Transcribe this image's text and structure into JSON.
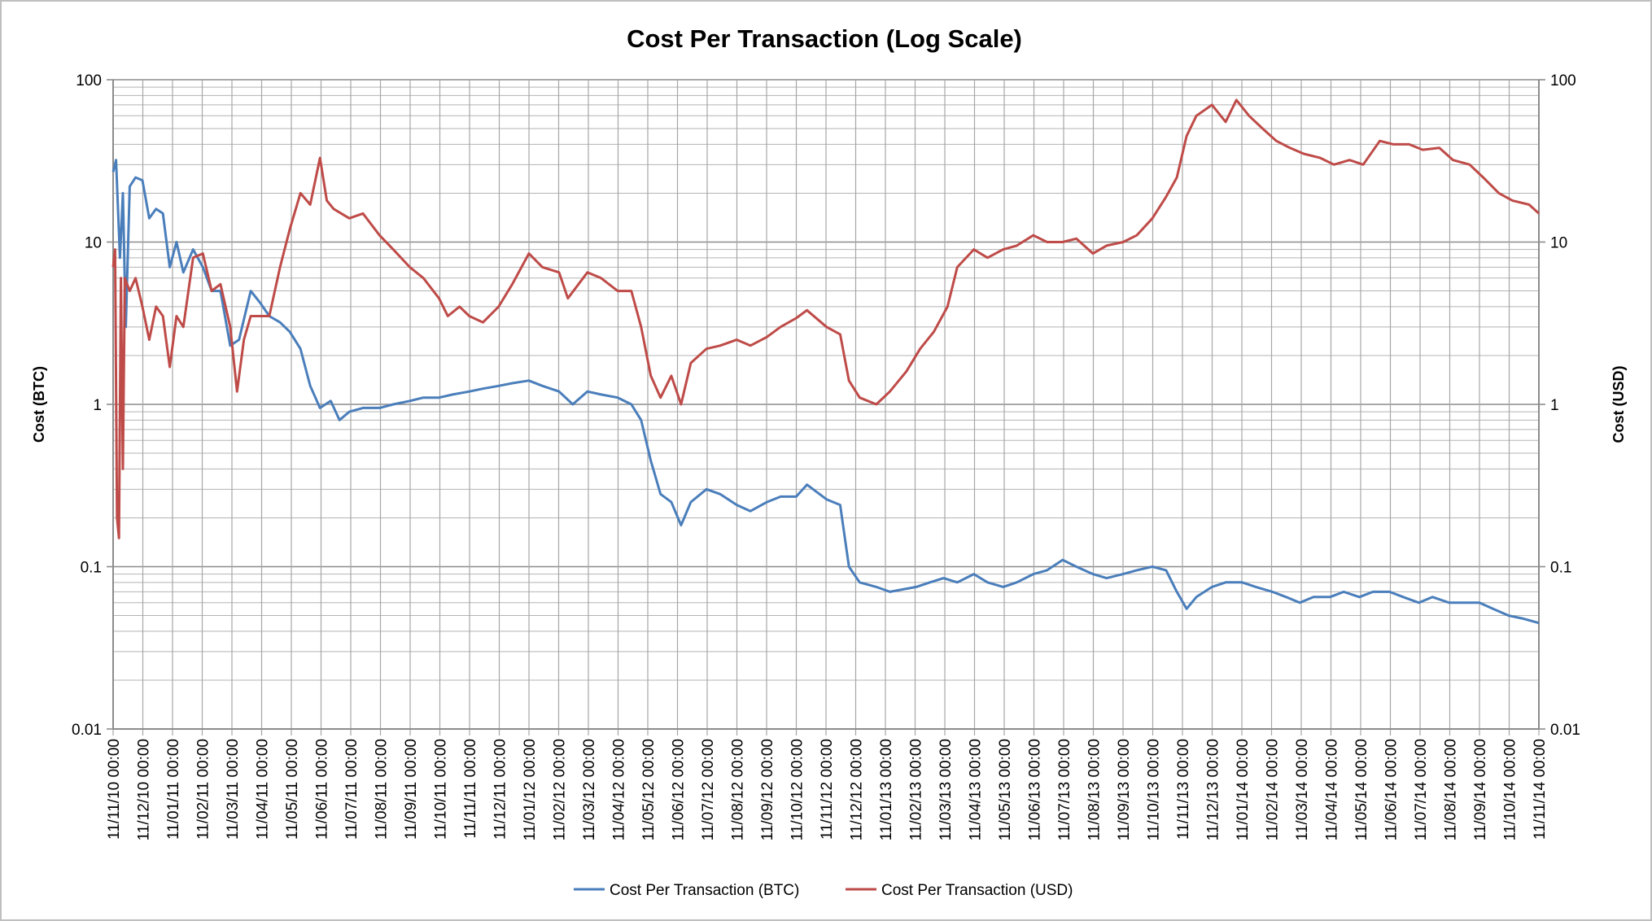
{
  "chart_data": {
    "type": "line",
    "title": "Cost Per Transaction (Log Scale)",
    "ylabel": "Cost (BTC)",
    "y2label": "Cost (USD)",
    "yscale": "log",
    "ylim": [
      0.01,
      100
    ],
    "y2lim": [
      0.01,
      100
    ],
    "ytick_labels": [
      "0.01",
      "0.1",
      "1",
      "10",
      "100"
    ],
    "grid": true,
    "legend": "bottom",
    "xlim": [
      "2010-11-11",
      "2014-11-11"
    ],
    "xtick_labels": [
      "11/11/10 00:00",
      "11/12/10 00:00",
      "11/01/11 00:00",
      "11/02/11 00:00",
      "11/03/11 00:00",
      "11/04/11 00:00",
      "11/05/11 00:00",
      "11/06/11 00:00",
      "11/07/11 00:00",
      "11/08/11 00:00",
      "11/09/11 00:00",
      "11/10/11 00:00",
      "11/11/11 00:00",
      "11/12/11 00:00",
      "11/01/12 00:00",
      "11/02/12 00:00",
      "11/03/12 00:00",
      "11/04/12 00:00",
      "11/05/12 00:00",
      "11/06/12 00:00",
      "11/07/12 00:00",
      "11/08/12 00:00",
      "11/09/12 00:00",
      "11/10/12 00:00",
      "11/11/12 00:00",
      "11/12/12 00:00",
      "11/01/13 00:00",
      "11/02/13 00:00",
      "11/03/13 00:00",
      "11/04/13 00:00",
      "11/05/13 00:00",
      "11/06/13 00:00",
      "11/07/13 00:00",
      "11/08/13 00:00",
      "11/09/13 00:00",
      "11/10/13 00:00",
      "11/11/13 00:00",
      "11/12/13 00:00",
      "11/01/14 00:00",
      "11/02/14 00:00",
      "11/03/14 00:00",
      "11/04/14 00:00",
      "11/05/14 00:00",
      "11/06/14 00:00",
      "11/07/14 00:00",
      "11/08/14 00:00",
      "11/09/14 00:00",
      "11/10/14 00:00",
      "11/11/14 00:00"
    ],
    "series": [
      {
        "name": "Cost Per Transaction (BTC)",
        "axis": "left",
        "color": "#4a7ebb",
        "points": [
          [
            "2010-11-11",
            27
          ],
          [
            "2010-11-14",
            32
          ],
          [
            "2010-11-18",
            8
          ],
          [
            "2010-11-21",
            20
          ],
          [
            "2010-11-24",
            3
          ],
          [
            "2010-11-28",
            22
          ],
          [
            "2010-12-04",
            25
          ],
          [
            "2010-12-11",
            24
          ],
          [
            "2010-12-18",
            14
          ],
          [
            "2010-12-25",
            16
          ],
          [
            "2011-01-01",
            15
          ],
          [
            "2011-01-08",
            7
          ],
          [
            "2011-01-15",
            10
          ],
          [
            "2011-01-22",
            6.5
          ],
          [
            "2011-02-01",
            9
          ],
          [
            "2011-02-11",
            7
          ],
          [
            "2011-02-20",
            5
          ],
          [
            "2011-03-01",
            5
          ],
          [
            "2011-03-11",
            2.3
          ],
          [
            "2011-03-20",
            2.5
          ],
          [
            "2011-04-01",
            5
          ],
          [
            "2011-04-11",
            4.2
          ],
          [
            "2011-04-20",
            3.5
          ],
          [
            "2011-05-01",
            3.2
          ],
          [
            "2011-05-11",
            2.8
          ],
          [
            "2011-05-22",
            2.2
          ],
          [
            "2011-06-01",
            1.3
          ],
          [
            "2011-06-11",
            0.95
          ],
          [
            "2011-06-22",
            1.05
          ],
          [
            "2011-07-01",
            0.8
          ],
          [
            "2011-07-11",
            0.9
          ],
          [
            "2011-07-25",
            0.95
          ],
          [
            "2011-08-11",
            0.95
          ],
          [
            "2011-08-25",
            1.0
          ],
          [
            "2011-09-11",
            1.05
          ],
          [
            "2011-09-25",
            1.1
          ],
          [
            "2011-10-11",
            1.1
          ],
          [
            "2011-10-25",
            1.15
          ],
          [
            "2011-11-11",
            1.2
          ],
          [
            "2011-11-25",
            1.25
          ],
          [
            "2011-12-11",
            1.3
          ],
          [
            "2011-12-25",
            1.35
          ],
          [
            "2012-01-11",
            1.4
          ],
          [
            "2012-01-25",
            1.3
          ],
          [
            "2012-02-11",
            1.2
          ],
          [
            "2012-02-25",
            1.0
          ],
          [
            "2012-03-11",
            1.2
          ],
          [
            "2012-03-25",
            1.15
          ],
          [
            "2012-04-11",
            1.1
          ],
          [
            "2012-04-25",
            1.0
          ],
          [
            "2012-05-05",
            0.8
          ],
          [
            "2012-05-15",
            0.45
          ],
          [
            "2012-05-25",
            0.28
          ],
          [
            "2012-06-05",
            0.25
          ],
          [
            "2012-06-15",
            0.18
          ],
          [
            "2012-06-25",
            0.25
          ],
          [
            "2012-07-11",
            0.3
          ],
          [
            "2012-07-25",
            0.28
          ],
          [
            "2012-08-11",
            0.24
          ],
          [
            "2012-08-25",
            0.22
          ],
          [
            "2012-09-11",
            0.25
          ],
          [
            "2012-09-25",
            0.27
          ],
          [
            "2012-10-11",
            0.27
          ],
          [
            "2012-10-22",
            0.32
          ],
          [
            "2012-11-11",
            0.26
          ],
          [
            "2012-11-25",
            0.24
          ],
          [
            "2012-12-04",
            0.1
          ],
          [
            "2012-12-15",
            0.08
          ],
          [
            "2013-01-01",
            0.075
          ],
          [
            "2013-01-15",
            0.07
          ],
          [
            "2013-02-11",
            0.075
          ],
          [
            "2013-02-25",
            0.08
          ],
          [
            "2013-03-11",
            0.085
          ],
          [
            "2013-03-25",
            0.08
          ],
          [
            "2013-04-11",
            0.09
          ],
          [
            "2013-04-25",
            0.08
          ],
          [
            "2013-05-11",
            0.075
          ],
          [
            "2013-05-25",
            0.08
          ],
          [
            "2013-06-11",
            0.09
          ],
          [
            "2013-06-25",
            0.095
          ],
          [
            "2013-07-11",
            0.11
          ],
          [
            "2013-07-25",
            0.1
          ],
          [
            "2013-08-11",
            0.09
          ],
          [
            "2013-08-25",
            0.085
          ],
          [
            "2013-09-11",
            0.09
          ],
          [
            "2013-09-25",
            0.095
          ],
          [
            "2013-10-11",
            0.1
          ],
          [
            "2013-10-25",
            0.095
          ],
          [
            "2013-11-05",
            0.07
          ],
          [
            "2013-11-15",
            0.055
          ],
          [
            "2013-11-25",
            0.065
          ],
          [
            "2013-12-11",
            0.075
          ],
          [
            "2013-12-25",
            0.08
          ],
          [
            "2014-01-11",
            0.08
          ],
          [
            "2014-01-25",
            0.075
          ],
          [
            "2014-02-11",
            0.07
          ],
          [
            "2014-02-25",
            0.065
          ],
          [
            "2014-03-11",
            0.06
          ],
          [
            "2014-03-25",
            0.065
          ],
          [
            "2014-04-11",
            0.065
          ],
          [
            "2014-04-25",
            0.07
          ],
          [
            "2014-05-11",
            0.065
          ],
          [
            "2014-05-25",
            0.07
          ],
          [
            "2014-06-11",
            0.07
          ],
          [
            "2014-06-25",
            0.065
          ],
          [
            "2014-07-11",
            0.06
          ],
          [
            "2014-07-25",
            0.065
          ],
          [
            "2014-08-11",
            0.06
          ],
          [
            "2014-08-25",
            0.06
          ],
          [
            "2014-09-11",
            0.06
          ],
          [
            "2014-09-25",
            0.055
          ],
          [
            "2014-10-11",
            0.05
          ],
          [
            "2014-10-25",
            0.048
          ],
          [
            "2014-11-11",
            0.045
          ]
        ]
      },
      {
        "name": "Cost Per Transaction (USD)",
        "axis": "right",
        "color": "#be4b48",
        "points": [
          [
            "2010-11-11",
            7
          ],
          [
            "2010-11-13",
            9
          ],
          [
            "2010-11-15",
            0.2
          ],
          [
            "2010-11-17",
            0.15
          ],
          [
            "2010-11-19",
            6
          ],
          [
            "2010-11-21",
            0.4
          ],
          [
            "2010-11-23",
            6
          ],
          [
            "2010-11-28",
            5
          ],
          [
            "2010-12-04",
            6
          ],
          [
            "2010-12-11",
            4
          ],
          [
            "2010-12-18",
            2.5
          ],
          [
            "2010-12-25",
            4
          ],
          [
            "2011-01-01",
            3.5
          ],
          [
            "2011-01-08",
            1.7
          ],
          [
            "2011-01-15",
            3.5
          ],
          [
            "2011-01-22",
            3
          ],
          [
            "2011-02-01",
            8
          ],
          [
            "2011-02-11",
            8.5
          ],
          [
            "2011-02-20",
            5
          ],
          [
            "2011-03-01",
            5.5
          ],
          [
            "2011-03-11",
            3
          ],
          [
            "2011-03-18",
            1.2
          ],
          [
            "2011-03-25",
            2.5
          ],
          [
            "2011-04-01",
            3.5
          ],
          [
            "2011-04-11",
            3.5
          ],
          [
            "2011-04-20",
            3.5
          ],
          [
            "2011-05-01",
            7
          ],
          [
            "2011-05-11",
            12
          ],
          [
            "2011-05-22",
            20
          ],
          [
            "2011-06-01",
            17
          ],
          [
            "2011-06-11",
            33
          ],
          [
            "2011-06-18",
            18
          ],
          [
            "2011-06-25",
            16
          ],
          [
            "2011-07-11",
            14
          ],
          [
            "2011-07-25",
            15
          ],
          [
            "2011-08-11",
            11
          ],
          [
            "2011-08-25",
            9
          ],
          [
            "2011-09-11",
            7
          ],
          [
            "2011-09-25",
            6
          ],
          [
            "2011-10-11",
            4.5
          ],
          [
            "2011-10-20",
            3.5
          ],
          [
            "2011-11-01",
            4
          ],
          [
            "2011-11-11",
            3.5
          ],
          [
            "2011-11-25",
            3.2
          ],
          [
            "2011-12-11",
            4
          ],
          [
            "2011-12-25",
            5.5
          ],
          [
            "2012-01-11",
            8.5
          ],
          [
            "2012-01-25",
            7
          ],
          [
            "2012-02-11",
            6.5
          ],
          [
            "2012-02-20",
            4.5
          ],
          [
            "2012-03-11",
            6.5
          ],
          [
            "2012-03-25",
            6
          ],
          [
            "2012-04-11",
            5
          ],
          [
            "2012-04-25",
            5
          ],
          [
            "2012-05-05",
            3
          ],
          [
            "2012-05-15",
            1.5
          ],
          [
            "2012-05-25",
            1.1
          ],
          [
            "2012-06-05",
            1.5
          ],
          [
            "2012-06-15",
            1.0
          ],
          [
            "2012-06-25",
            1.8
          ],
          [
            "2012-07-11",
            2.2
          ],
          [
            "2012-07-25",
            2.3
          ],
          [
            "2012-08-11",
            2.5
          ],
          [
            "2012-08-25",
            2.3
          ],
          [
            "2012-09-11",
            2.6
          ],
          [
            "2012-09-25",
            3
          ],
          [
            "2012-10-11",
            3.4
          ],
          [
            "2012-10-22",
            3.8
          ],
          [
            "2012-11-11",
            3
          ],
          [
            "2012-11-25",
            2.7
          ],
          [
            "2012-12-04",
            1.4
          ],
          [
            "2012-12-15",
            1.1
          ],
          [
            "2013-01-01",
            1.0
          ],
          [
            "2013-01-15",
            1.2
          ],
          [
            "2013-02-01",
            1.6
          ],
          [
            "2013-02-15",
            2.2
          ],
          [
            "2013-03-01",
            2.8
          ],
          [
            "2013-03-15",
            4
          ],
          [
            "2013-03-25",
            7
          ],
          [
            "2013-04-11",
            9
          ],
          [
            "2013-04-25",
            8
          ],
          [
            "2013-05-11",
            9
          ],
          [
            "2013-05-25",
            9.5
          ],
          [
            "2013-06-11",
            11
          ],
          [
            "2013-06-25",
            10
          ],
          [
            "2013-07-11",
            10
          ],
          [
            "2013-07-25",
            10.5
          ],
          [
            "2013-08-11",
            8.5
          ],
          [
            "2013-08-25",
            9.5
          ],
          [
            "2013-09-11",
            10
          ],
          [
            "2013-09-25",
            11
          ],
          [
            "2013-10-11",
            14
          ],
          [
            "2013-10-25",
            19
          ],
          [
            "2013-11-05",
            25
          ],
          [
            "2013-11-15",
            45
          ],
          [
            "2013-11-25",
            60
          ],
          [
            "2013-12-11",
            70
          ],
          [
            "2013-12-25",
            55
          ],
          [
            "2014-01-05",
            75
          ],
          [
            "2014-01-18",
            60
          ],
          [
            "2014-02-01",
            50
          ],
          [
            "2014-02-15",
            42
          ],
          [
            "2014-03-01",
            38
          ],
          [
            "2014-03-15",
            35
          ],
          [
            "2014-04-01",
            33
          ],
          [
            "2014-04-15",
            30
          ],
          [
            "2014-05-01",
            32
          ],
          [
            "2014-05-15",
            30
          ],
          [
            "2014-06-01",
            42
          ],
          [
            "2014-06-15",
            40
          ],
          [
            "2014-07-01",
            40
          ],
          [
            "2014-07-15",
            37
          ],
          [
            "2014-08-01",
            38
          ],
          [
            "2014-08-15",
            32
          ],
          [
            "2014-09-01",
            30
          ],
          [
            "2014-09-15",
            25
          ],
          [
            "2014-10-01",
            20
          ],
          [
            "2014-10-15",
            18
          ],
          [
            "2014-11-01",
            17
          ],
          [
            "2014-11-11",
            15
          ]
        ]
      }
    ]
  }
}
